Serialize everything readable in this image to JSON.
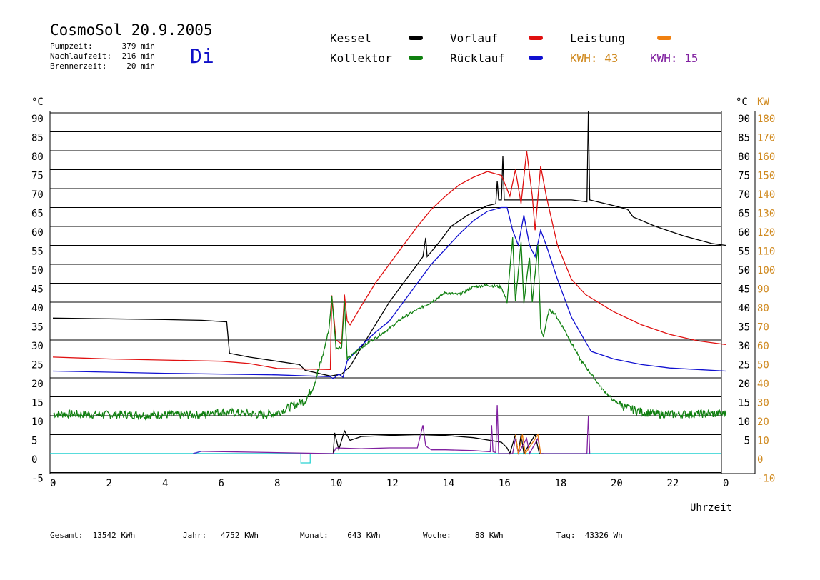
{
  "header": {
    "title": "CosmoSol 20.9.2005",
    "weekday": "Di",
    "stats": [
      {
        "label": "Pumpzeit:",
        "value": "379 min"
      },
      {
        "label": "Nachlaufzeit:",
        "value": "216 min"
      },
      {
        "label": "Brennerzeit:",
        "value": "20 min"
      }
    ]
  },
  "legend": {
    "items": [
      {
        "label": "Kessel",
        "color": "#000000"
      },
      {
        "label": "Vorlauf",
        "color": "#e01010"
      },
      {
        "label": "Leistung",
        "color": "#f08010"
      },
      {
        "label": "Kollektor",
        "color": "#108010"
      },
      {
        "label": "Rücklauf",
        "color": "#1010d0"
      }
    ],
    "kwh": [
      {
        "label": "KWH:",
        "value": "43",
        "color": "#d08a20"
      },
      {
        "label": "KWH:",
        "value": "15",
        "color": "#8020a0"
      }
    ]
  },
  "footer": [
    {
      "label": "Gesamt:",
      "value": "13542 KWh"
    },
    {
      "label": "Jahr:",
      "value": "4752 KWh"
    },
    {
      "label": "Monat:",
      "value": "643 KWh"
    },
    {
      "label": "Woche:",
      "value": "88 KWh"
    },
    {
      "label": "Tag:",
      "value": "43326 Wh"
    }
  ],
  "chart_data": {
    "type": "line",
    "xlabel": "Uhrzeit",
    "ylabel_left": "°C",
    "ylabel_right_unit_c": "°C",
    "ylabel_right": "KW",
    "xlim": [
      0,
      24
    ],
    "ylim": [
      -5,
      95
    ],
    "ylim_right": [
      -10,
      190
    ],
    "x_ticks": [
      "0",
      "2",
      "4",
      "6",
      "8",
      "10",
      "12",
      "14",
      "16",
      "18",
      "20",
      "22",
      "0"
    ],
    "y_ticks_left": [
      90,
      85,
      80,
      75,
      70,
      65,
      60,
      55,
      50,
      45,
      40,
      35,
      30,
      25,
      20,
      15,
      10,
      5,
      0,
      -5
    ],
    "y_ticks_right_c": [
      90,
      85,
      80,
      75,
      70,
      65,
      60,
      55,
      50,
      45,
      40,
      35,
      30,
      25,
      20,
      15,
      10,
      5
    ],
    "y_ticks_right_kw": [
      180,
      170,
      160,
      150,
      140,
      130,
      120,
      110,
      100,
      90,
      80,
      70,
      60,
      50,
      40,
      30,
      20,
      10,
      0,
      -10
    ],
    "grid": true,
    "series": [
      {
        "name": "Kessel",
        "color": "#000000",
        "points": [
          [
            0,
            35.8
          ],
          [
            2,
            35.6
          ],
          [
            4,
            35.4
          ],
          [
            5.3,
            35.2
          ],
          [
            6.2,
            34.8
          ],
          [
            6.3,
            26.5
          ],
          [
            7,
            25.5
          ],
          [
            8.8,
            23.5
          ],
          [
            9,
            22
          ],
          [
            9.9,
            20.5
          ],
          [
            10.3,
            21
          ],
          [
            10.6,
            23
          ],
          [
            11,
            28
          ],
          [
            11.5,
            34
          ],
          [
            12,
            40
          ],
          [
            12.5,
            45
          ],
          [
            13,
            50
          ],
          [
            13.2,
            52
          ],
          [
            13.3,
            57
          ],
          [
            13.35,
            52
          ],
          [
            13.8,
            56
          ],
          [
            14.2,
            60
          ],
          [
            14.8,
            63
          ],
          [
            15.5,
            65.5
          ],
          [
            15.8,
            66
          ],
          [
            15.85,
            72
          ],
          [
            15.9,
            67
          ],
          [
            16.0,
            67
          ],
          [
            16.05,
            78.5
          ],
          [
            16.1,
            67
          ],
          [
            17.5,
            67
          ],
          [
            18.5,
            67
          ],
          [
            19.05,
            66.5
          ],
          [
            19.1,
            90.5
          ],
          [
            19.15,
            67
          ],
          [
            20,
            65.5
          ],
          [
            20.5,
            64.5
          ],
          [
            20.7,
            62.5
          ],
          [
            21.5,
            60
          ],
          [
            22.5,
            57.5
          ],
          [
            23.5,
            55.5
          ],
          [
            24,
            55
          ]
        ]
      },
      {
        "name": "Vorlauf",
        "color": "#e01010",
        "points": [
          [
            0,
            25.5
          ],
          [
            2,
            25
          ],
          [
            4,
            24.7
          ],
          [
            6,
            24.4
          ],
          [
            7,
            23.8
          ],
          [
            8,
            22.5
          ],
          [
            9.9,
            22.2
          ],
          [
            9.9,
            23.5
          ],
          [
            9.95,
            41.8
          ],
          [
            10.1,
            30
          ],
          [
            10.3,
            29
          ],
          [
            10.4,
            42
          ],
          [
            10.5,
            35
          ],
          [
            10.6,
            34
          ],
          [
            11,
            39
          ],
          [
            11.5,
            45
          ],
          [
            12,
            50
          ],
          [
            12.5,
            55
          ],
          [
            13,
            60
          ],
          [
            13.5,
            64.5
          ],
          [
            14,
            68
          ],
          [
            14.5,
            71
          ],
          [
            15,
            73
          ],
          [
            15.5,
            74.5
          ],
          [
            16,
            73.5
          ],
          [
            16.3,
            68
          ],
          [
            16.5,
            75
          ],
          [
            16.7,
            66
          ],
          [
            16.9,
            80
          ],
          [
            17.1,
            68
          ],
          [
            17.2,
            59
          ],
          [
            17.4,
            76
          ],
          [
            17.6,
            68
          ],
          [
            18,
            55
          ],
          [
            18.5,
            46
          ],
          [
            19,
            42
          ],
          [
            20,
            37.5
          ],
          [
            21,
            34
          ],
          [
            22,
            31.5
          ],
          [
            23,
            29.8
          ],
          [
            24,
            28.8
          ]
        ]
      },
      {
        "name": "Rücklauf",
        "color": "#1010d0",
        "points": [
          [
            0,
            21.8
          ],
          [
            2,
            21.5
          ],
          [
            4,
            21.2
          ],
          [
            6,
            21
          ],
          [
            8,
            20.8
          ],
          [
            9.9,
            20.3
          ],
          [
            10,
            19.8
          ],
          [
            10.2,
            21
          ],
          [
            10.35,
            20.2
          ],
          [
            10.5,
            24.5
          ],
          [
            11,
            28.5
          ],
          [
            11.5,
            32
          ],
          [
            12,
            35
          ],
          [
            12.5,
            40
          ],
          [
            13,
            45
          ],
          [
            13.5,
            50
          ],
          [
            14,
            54
          ],
          [
            14.5,
            58
          ],
          [
            15,
            61.5
          ],
          [
            15.5,
            64
          ],
          [
            16,
            65
          ],
          [
            16.2,
            65
          ],
          [
            16.4,
            59
          ],
          [
            16.6,
            55
          ],
          [
            16.8,
            63
          ],
          [
            17,
            55
          ],
          [
            17.2,
            52
          ],
          [
            17.4,
            59
          ],
          [
            17.6,
            55
          ],
          [
            18,
            46
          ],
          [
            18.5,
            36
          ],
          [
            19,
            29.5
          ],
          [
            19.2,
            27
          ],
          [
            20,
            25
          ],
          [
            21,
            23.5
          ],
          [
            22,
            22.6
          ],
          [
            23,
            22.2
          ],
          [
            24,
            21.8
          ]
        ]
      },
      {
        "name": "Kollektor",
        "color": "#108010",
        "points": [
          [
            0,
            10.5
          ],
          [
            2,
            10.3
          ],
          [
            4,
            10.2
          ],
          [
            5.5,
            10.3
          ],
          [
            5.6,
            11
          ],
          [
            6.5,
            10.8
          ],
          [
            7.5,
            10.2
          ],
          [
            8,
            10.8
          ],
          [
            8.5,
            12.5
          ],
          [
            9,
            14
          ],
          [
            9.3,
            18
          ],
          [
            9.6,
            25
          ],
          [
            9.85,
            33
          ],
          [
            9.95,
            41.5
          ],
          [
            10.1,
            28
          ],
          [
            10.3,
            28
          ],
          [
            10.4,
            40
          ],
          [
            10.5,
            25
          ],
          [
            11,
            28
          ],
          [
            11.5,
            30.5
          ],
          [
            12,
            33
          ],
          [
            12.5,
            36
          ],
          [
            13,
            38
          ],
          [
            13.5,
            40
          ],
          [
            14,
            42.5
          ],
          [
            14.5,
            42
          ],
          [
            15,
            44
          ],
          [
            15.5,
            44.5
          ],
          [
            16,
            44
          ],
          [
            16.2,
            40
          ],
          [
            16.4,
            57
          ],
          [
            16.5,
            40
          ],
          [
            16.7,
            56
          ],
          [
            16.8,
            40
          ],
          [
            17,
            52
          ],
          [
            17.1,
            40
          ],
          [
            17.3,
            55
          ],
          [
            17.4,
            33
          ],
          [
            17.5,
            31
          ],
          [
            17.7,
            38
          ],
          [
            17.9,
            37
          ],
          [
            18.3,
            32
          ],
          [
            18.8,
            25
          ],
          [
            19.2,
            21
          ],
          [
            19.6,
            17
          ],
          [
            20,
            14
          ],
          [
            20.5,
            12
          ],
          [
            21,
            11
          ],
          [
            21.5,
            10.5
          ],
          [
            22,
            10.3
          ],
          [
            23,
            10.5
          ],
          [
            24,
            10.5
          ]
        ]
      },
      {
        "name": "Leistung",
        "color": "#f08010",
        "points": [
          [
            16.5,
            5
          ],
          [
            16.6,
            0
          ],
          [
            16.75,
            5
          ],
          [
            16.85,
            0
          ],
          [
            17.3,
            5
          ],
          [
            17.4,
            0
          ]
        ]
      }
    ],
    "power_small": [
      {
        "color": "#000000",
        "points": [
          [
            10,
            0
          ],
          [
            10.05,
            5.5
          ],
          [
            10.2,
            1
          ],
          [
            10.4,
            6
          ],
          [
            10.6,
            3.5
          ],
          [
            11,
            4.5
          ],
          [
            12,
            4.8
          ],
          [
            13,
            5
          ],
          [
            14,
            4.8
          ],
          [
            15,
            4.2
          ],
          [
            16,
            3
          ],
          [
            16.2,
            1.5
          ],
          [
            16.3,
            0
          ],
          [
            16.5,
            5
          ],
          [
            16.6,
            0
          ],
          [
            16.7,
            5
          ],
          [
            16.8,
            0
          ],
          [
            17.2,
            5
          ],
          [
            17.35,
            0
          ],
          [
            17.5,
            0
          ]
        ]
      },
      {
        "color": "#8020a0",
        "points": [
          [
            5,
            0
          ],
          [
            5.3,
            0.6
          ],
          [
            10,
            0
          ],
          [
            10.1,
            1.5
          ],
          [
            11,
            1.3
          ],
          [
            12,
            1.5
          ],
          [
            13,
            1.5
          ],
          [
            13.2,
            7.5
          ],
          [
            13.3,
            2
          ],
          [
            13.5,
            1
          ],
          [
            14,
            1
          ],
          [
            15,
            0.8
          ],
          [
            15.6,
            0.5
          ],
          [
            15.65,
            7.5
          ],
          [
            15.7,
            0.5
          ],
          [
            15.8,
            0.3
          ],
          [
            15.85,
            12.8
          ],
          [
            15.9,
            0
          ],
          [
            16.4,
            0
          ],
          [
            16.5,
            4
          ],
          [
            16.6,
            0
          ],
          [
            16.9,
            4
          ],
          [
            17,
            0
          ],
          [
            17.3,
            4
          ],
          [
            17.4,
            0
          ],
          [
            19.05,
            0
          ],
          [
            19.1,
            10
          ],
          [
            19.15,
            0
          ]
        ]
      },
      {
        "color": "#4040d0",
        "points": [
          [
            5,
            0
          ],
          [
            5.3,
            0.6
          ]
        ]
      }
    ],
    "baseline_color": "#20d0d0",
    "marker_x": 9
  }
}
